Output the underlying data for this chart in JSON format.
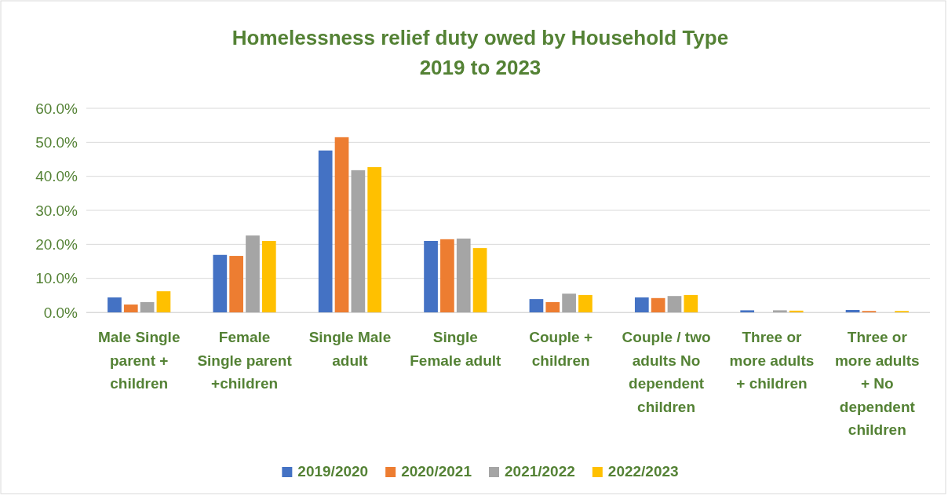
{
  "chart_data": {
    "type": "bar",
    "title": "Homelessness relief duty owed by Household Type\n2019 to 2023",
    "categories": [
      "Male Single parent + children",
      "Female Single parent +children",
      "Single Male adult",
      "Single Female adult",
      "Couple + children",
      "Couple / two adults No dependent children",
      "Three or more adults + children",
      "Three or more adults + No dependent children"
    ],
    "series": [
      {
        "name": "2019/2020",
        "color": "#4472c4",
        "values": [
          4.4,
          16.9,
          47.6,
          21.0,
          3.9,
          4.4,
          0.6,
          0.7
        ]
      },
      {
        "name": "2020/2021",
        "color": "#ed7d31",
        "values": [
          2.3,
          16.6,
          51.5,
          21.5,
          3.0,
          4.2,
          null,
          0.4
        ]
      },
      {
        "name": "2021/2022",
        "color": "#a5a5a5",
        "values": [
          3.0,
          22.6,
          41.8,
          21.7,
          5.5,
          4.8,
          0.6,
          null
        ]
      },
      {
        "name": "2022/2023",
        "color": "#ffc000",
        "values": [
          6.2,
          21.0,
          42.7,
          18.9,
          5.1,
          5.1,
          0.5,
          0.4
        ]
      }
    ],
    "ylim": [
      0,
      60
    ],
    "yticks": [
      {
        "value": 0,
        "label": "0.0%"
      },
      {
        "value": 10,
        "label": "10.0%"
      },
      {
        "value": 20,
        "label": "20.0%"
      },
      {
        "value": 30,
        "label": "30.0%"
      },
      {
        "value": 40,
        "label": "40.0%"
      },
      {
        "value": 50,
        "label": "50.0%"
      },
      {
        "value": 60,
        "label": "60.0%"
      }
    ],
    "grid": "y",
    "legend": "bottom"
  }
}
